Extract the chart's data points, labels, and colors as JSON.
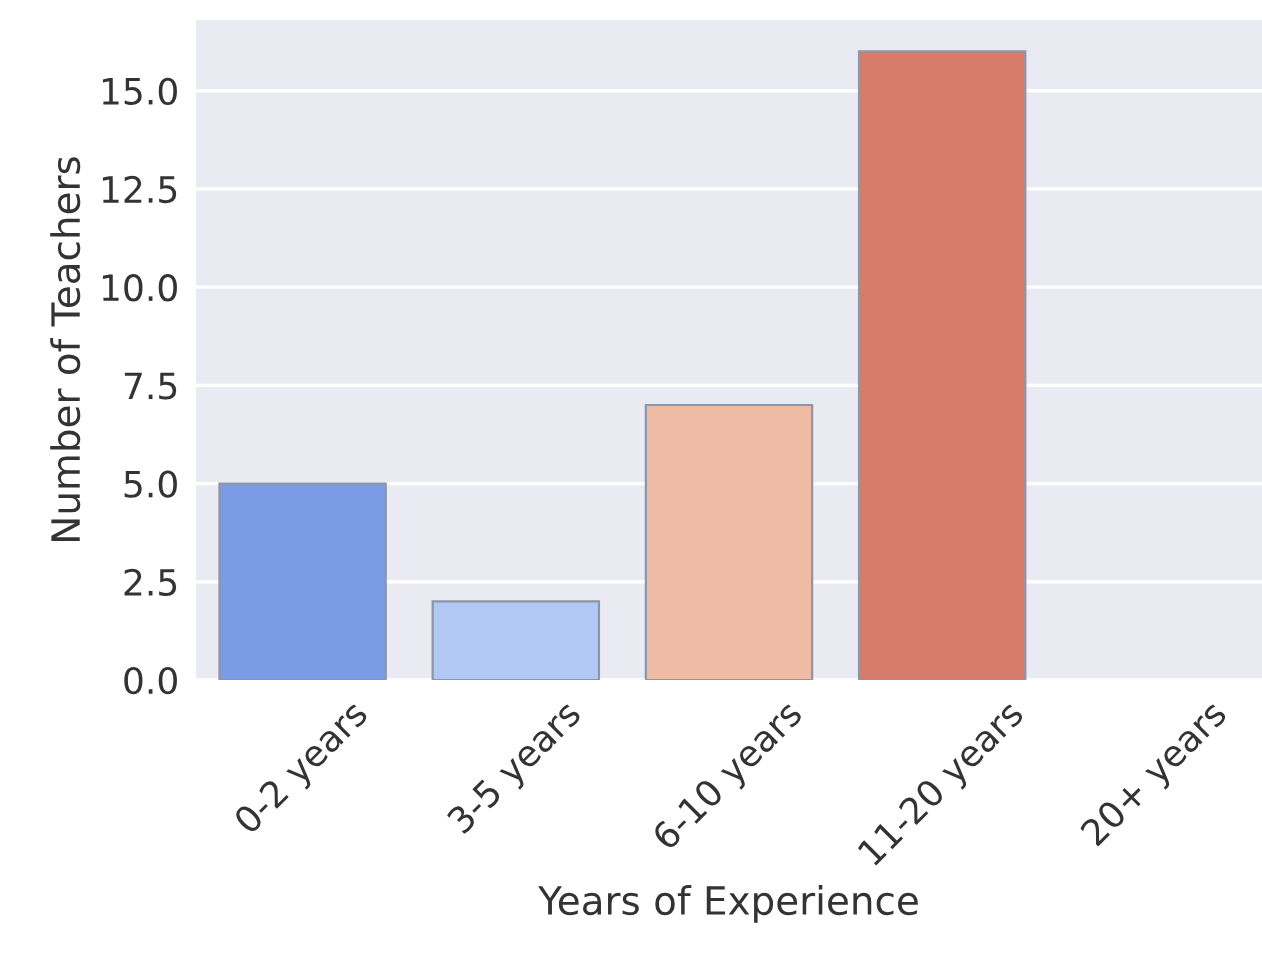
{
  "chart_data": {
    "type": "bar",
    "xlabel": "Years of Experience",
    "ylabel": "Number of Teachers",
    "categories": [
      "0-2 years",
      "3-5 years",
      "6-10 years",
      "11-20 years",
      "20+ years"
    ],
    "values": [
      5,
      2,
      7,
      16,
      0
    ],
    "colors": [
      "#7b9be6",
      "#b3c9f5",
      "#eebca4",
      "#d77c68",
      null
    ],
    "ylim": [
      0,
      16.8
    ],
    "yticks": [
      {
        "value": 0,
        "label": "0.0"
      },
      2.5,
      {
        "value": 5,
        "label": "5.0"
      },
      7.5,
      {
        "value": 10,
        "label": "10.0"
      },
      12.5,
      {
        "value": 15,
        "label": "15.0"
      }
    ],
    "grid": "y"
  }
}
